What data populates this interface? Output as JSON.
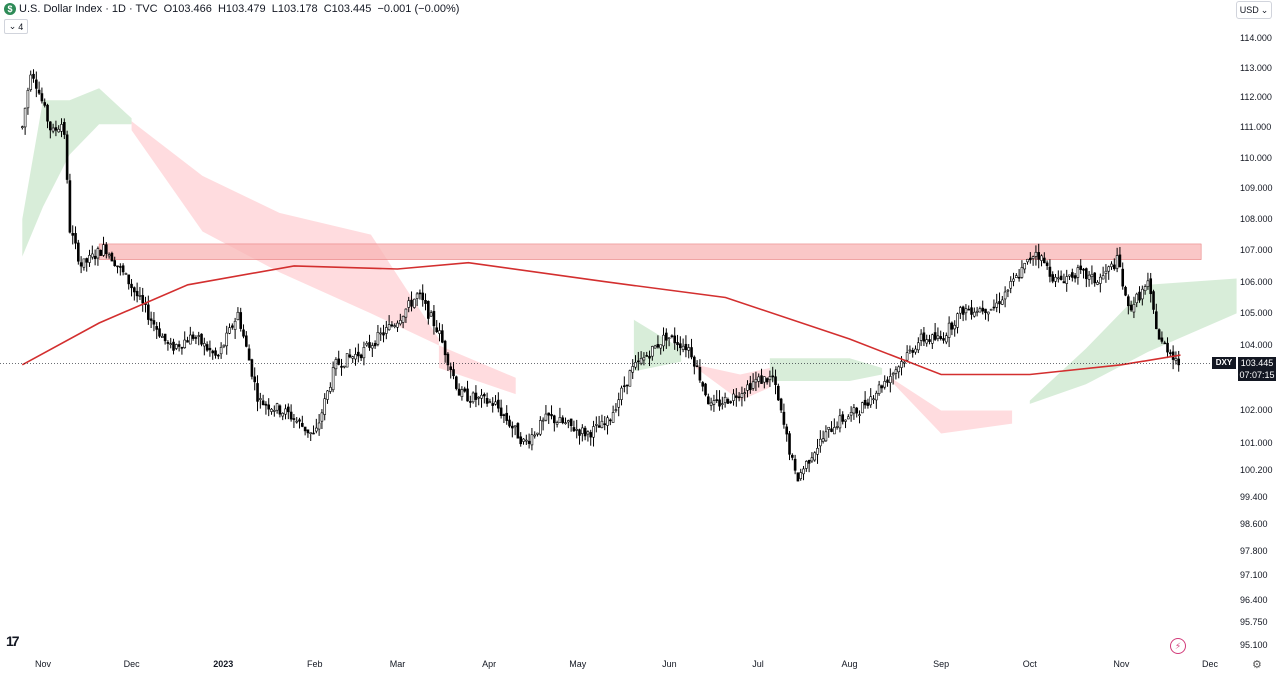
{
  "header": {
    "logo": "$",
    "title": "U.S. Dollar Index · 1D · TVC",
    "open": "O103.466",
    "high": "H103.479",
    "low": "L103.178",
    "close": "C103.445",
    "change": "−0.001 (−0.00%)",
    "indicator_count": "4",
    "currency": "USD"
  },
  "price_tag": {
    "symbol": "DXY",
    "price": "103.445",
    "countdown": "07:07:15"
  },
  "icons": {
    "tradingview_logo": "tradingview-logo-icon",
    "bolt": "bolt-icon",
    "settings": "settings-icon",
    "collapse": "chevron-down-icon"
  },
  "colors": {
    "up_candle": "#ffffff",
    "down_candle": "#000000",
    "sma_line": "#d32f2f",
    "cloud_bull": "#c8e6c9",
    "cloud_bear": "#ffcdd2",
    "resistance_zone": "#f8b4b4"
  },
  "chart_data": {
    "type": "candlestick",
    "title": "U.S. Dollar Index",
    "timeframe": "1D",
    "source": "TVC",
    "y_axis_ticks": [
      "114.000",
      "113.000",
      "112.000",
      "111.000",
      "110.000",
      "109.000",
      "108.000",
      "107.000",
      "106.000",
      "105.000",
      "104.000",
      "103.000",
      "102.000",
      "101.000",
      "100.200",
      "99.400",
      "98.600",
      "97.800",
      "97.100",
      "96.400",
      "95.750",
      "95.100"
    ],
    "x_axis_labels": [
      "Nov",
      "Dec",
      "2023",
      "Feb",
      "Mar",
      "Apr",
      "May",
      "Jun",
      "Jul",
      "Aug",
      "Sep",
      "Oct",
      "Nov",
      "Dec"
    ],
    "ylim": [
      95.1,
      114.0
    ],
    "scale": "log",
    "price_path": [
      {
        "date": "2022-10-25",
        "price": 111.0
      },
      {
        "date": "2022-10-28",
        "price": 113.0
      },
      {
        "date": "2022-11-04",
        "price": 110.8
      },
      {
        "date": "2022-11-08",
        "price": 111.2
      },
      {
        "date": "2022-11-10",
        "price": 107.7
      },
      {
        "date": "2022-11-14",
        "price": 106.5
      },
      {
        "date": "2022-11-22",
        "price": 107.1
      },
      {
        "date": "2022-11-30",
        "price": 106.0
      },
      {
        "date": "2022-12-07",
        "price": 104.9
      },
      {
        "date": "2022-12-14",
        "price": 103.9
      },
      {
        "date": "2022-12-22",
        "price": 104.3
      },
      {
        "date": "2022-12-30",
        "price": 103.6
      },
      {
        "date": "2023-01-06",
        "price": 105.0
      },
      {
        "date": "2023-01-13",
        "price": 102.3
      },
      {
        "date": "2023-01-23",
        "price": 101.9
      },
      {
        "date": "2023-02-01",
        "price": 101.2
      },
      {
        "date": "2023-02-08",
        "price": 103.4
      },
      {
        "date": "2023-02-17",
        "price": 103.8
      },
      {
        "date": "2023-02-28",
        "price": 104.7
      },
      {
        "date": "2023-03-08",
        "price": 105.6
      },
      {
        "date": "2023-03-15",
        "price": 104.4
      },
      {
        "date": "2023-03-22",
        "price": 102.5
      },
      {
        "date": "2023-04-03",
        "price": 102.2
      },
      {
        "date": "2023-04-13",
        "price": 101.0
      },
      {
        "date": "2023-04-21",
        "price": 101.8
      },
      {
        "date": "2023-05-04",
        "price": 101.3
      },
      {
        "date": "2023-05-11",
        "price": 101.6
      },
      {
        "date": "2023-05-19",
        "price": 103.2
      },
      {
        "date": "2023-05-31",
        "price": 104.3
      },
      {
        "date": "2023-06-08",
        "price": 103.9
      },
      {
        "date": "2023-06-15",
        "price": 102.1
      },
      {
        "date": "2023-06-22",
        "price": 102.4
      },
      {
        "date": "2023-06-30",
        "price": 102.9
      },
      {
        "date": "2023-07-06",
        "price": 103.0
      },
      {
        "date": "2023-07-14",
        "price": 99.9
      },
      {
        "date": "2023-07-20",
        "price": 100.8
      },
      {
        "date": "2023-07-27",
        "price": 101.6
      },
      {
        "date": "2023-08-04",
        "price": 102.0
      },
      {
        "date": "2023-08-15",
        "price": 103.1
      },
      {
        "date": "2023-08-25",
        "price": 104.2
      },
      {
        "date": "2023-09-01",
        "price": 104.2
      },
      {
        "date": "2023-09-08",
        "price": 105.1
      },
      {
        "date": "2023-09-19",
        "price": 105.2
      },
      {
        "date": "2023-09-28",
        "price": 106.3
      },
      {
        "date": "2023-10-03",
        "price": 107.0
      },
      {
        "date": "2023-10-10",
        "price": 106.0
      },
      {
        "date": "2023-10-17",
        "price": 106.3
      },
      {
        "date": "2023-10-24",
        "price": 106.0
      },
      {
        "date": "2023-10-31",
        "price": 106.7
      },
      {
        "date": "2023-11-03",
        "price": 105.1
      },
      {
        "date": "2023-11-10",
        "price": 105.9
      },
      {
        "date": "2023-11-14",
        "price": 104.1
      },
      {
        "date": "2023-11-17",
        "price": 103.9
      },
      {
        "date": "2023-11-21",
        "price": 103.4
      }
    ],
    "sma_line": [
      {
        "date": "2022-10-25",
        "price": 103.4
      },
      {
        "date": "2022-11-20",
        "price": 104.7
      },
      {
        "date": "2022-12-20",
        "price": 105.9
      },
      {
        "date": "2023-01-25",
        "price": 106.5
      },
      {
        "date": "2023-03-01",
        "price": 106.4
      },
      {
        "date": "2023-03-25",
        "price": 106.6
      },
      {
        "date": "2023-05-10",
        "price": 106.0
      },
      {
        "date": "2023-06-20",
        "price": 105.5
      },
      {
        "date": "2023-08-01",
        "price": 104.2
      },
      {
        "date": "2023-09-01",
        "price": 103.1
      },
      {
        "date": "2023-10-01",
        "price": 103.1
      },
      {
        "date": "2023-11-01",
        "price": 103.4
      },
      {
        "date": "2023-11-21",
        "price": 103.7
      }
    ],
    "cloud_bull_segments": [
      [
        {
          "date": "2022-10-25",
          "upper": 108.0,
          "lower": 106.8
        },
        {
          "date": "2022-11-01",
          "upper": 111.9,
          "lower": 108.4
        },
        {
          "date": "2022-11-10",
          "upper": 111.9,
          "lower": 110.1
        },
        {
          "date": "2022-11-20",
          "upper": 112.3,
          "lower": 111.1
        },
        {
          "date": "2022-12-01",
          "upper": 111.3,
          "lower": 111.1
        }
      ],
      [
        {
          "date": "2023-05-20",
          "upper": 104.8,
          "lower": 103.2
        },
        {
          "date": "2023-06-05",
          "upper": 103.9,
          "lower": 103.5
        }
      ],
      [
        {
          "date": "2023-07-05",
          "upper": 103.6,
          "lower": 102.9
        },
        {
          "date": "2023-08-01",
          "upper": 103.6,
          "lower": 102.9
        },
        {
          "date": "2023-08-12",
          "upper": 103.3,
          "lower": 103.1
        }
      ],
      [
        {
          "date": "2023-10-01",
          "upper": 102.3,
          "lower": 102.2
        },
        {
          "date": "2023-10-20",
          "upper": 103.9,
          "lower": 102.8
        },
        {
          "date": "2023-11-10",
          "upper": 105.9,
          "lower": 103.8
        },
        {
          "date": "2023-12-10",
          "upper": 106.1,
          "lower": 105.0
        }
      ]
    ],
    "cloud_bear_segments": [
      [
        {
          "date": "2022-12-01",
          "upper": 111.2,
          "lower": 110.9
        },
        {
          "date": "2022-12-25",
          "upper": 109.4,
          "lower": 107.6
        },
        {
          "date": "2023-01-20",
          "upper": 108.2,
          "lower": 106.3
        },
        {
          "date": "2023-02-20",
          "upper": 107.5,
          "lower": 105.0
        },
        {
          "date": "2023-03-15",
          "upper": 104.2,
          "lower": 104.0
        }
      ],
      [
        {
          "date": "2023-03-15",
          "upper": 104.0,
          "lower": 103.3
        },
        {
          "date": "2023-04-10",
          "upper": 103.0,
          "lower": 102.5
        }
      ],
      [
        {
          "date": "2023-06-10",
          "upper": 103.4,
          "lower": 103.3
        },
        {
          "date": "2023-06-25",
          "upper": 103.1,
          "lower": 102.3
        },
        {
          "date": "2023-07-05",
          "upper": 103.3,
          "lower": 102.7
        }
      ],
      [
        {
          "date": "2023-08-15",
          "upper": 103.0,
          "lower": 102.9
        },
        {
          "date": "2023-09-01",
          "upper": 102.0,
          "lower": 101.3
        },
        {
          "date": "2023-09-25",
          "upper": 102.0,
          "lower": 101.6
        }
      ]
    ],
    "resistance_zone": {
      "from": "2022-11-20",
      "to": "2023-11-28",
      "upper": 107.2,
      "lower": 106.7
    },
    "last_price": 103.445
  }
}
